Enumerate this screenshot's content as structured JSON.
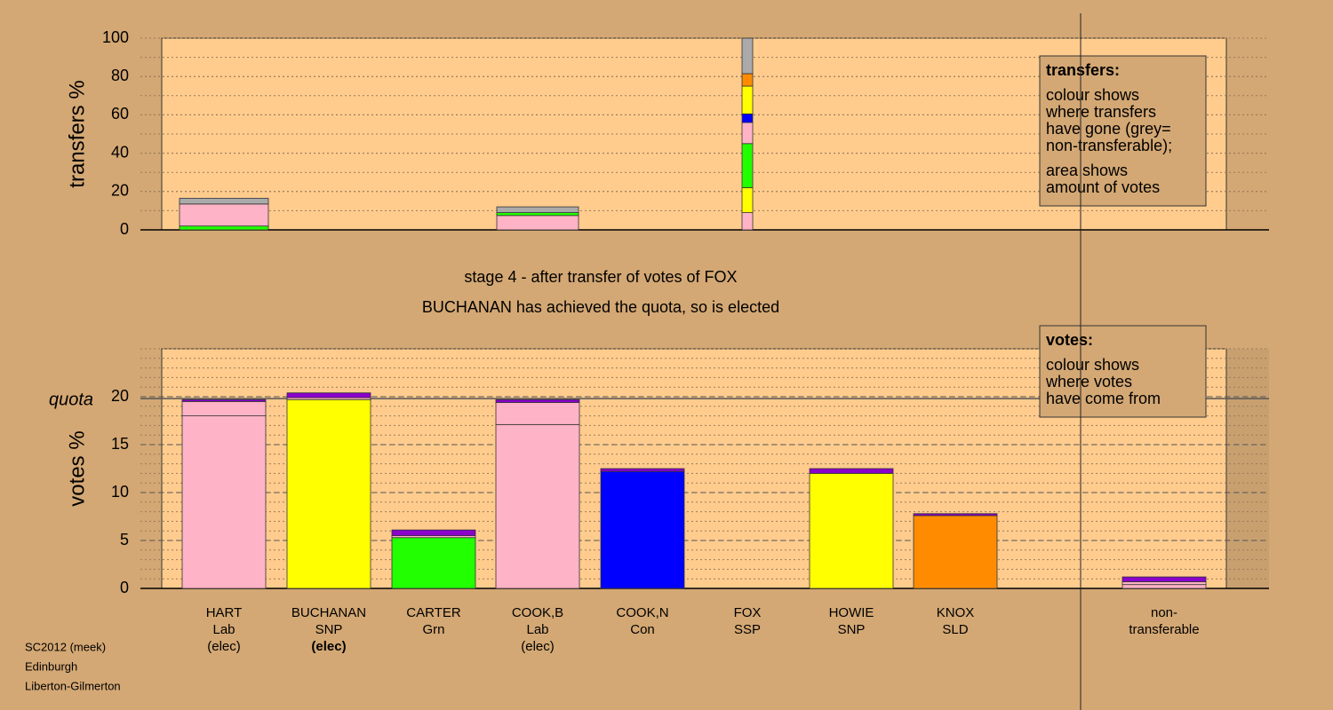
{
  "chart_data": [
    {
      "type": "stacked-bar",
      "ylabel": "transfers %",
      "ylim": [
        0,
        100
      ],
      "yticks": [
        0,
        20,
        40,
        60,
        80,
        100
      ],
      "grid": true,
      "bars": [
        {
          "segments": [
            {
              "value": 2,
              "color": "#22ff00"
            },
            {
              "value": 11.5,
              "color": "#ffb3c6"
            },
            {
              "value": 3,
              "color": "#aaaaaa"
            }
          ]
        },
        {
          "segments": []
        },
        {
          "segments": []
        },
        {
          "segments": [
            {
              "value": 7.5,
              "color": "#ffb3c6"
            },
            {
              "value": 1.5,
              "color": "#22ff00"
            },
            {
              "value": 3,
              "color": "#aaaaaa"
            }
          ]
        },
        {
          "segments": []
        },
        {
          "segments": [
            {
              "value": 9,
              "color": "#ffb3c6"
            },
            {
              "value": 13,
              "color": "#ffff00"
            },
            {
              "value": 23,
              "color": "#22ff00"
            },
            {
              "value": 11,
              "color": "#ffb3c6"
            },
            {
              "value": 4.5,
              "color": "#0000ff"
            },
            {
              "value": 14.5,
              "color": "#ffff00"
            },
            {
              "value": 6.5,
              "color": "#ff8c00"
            },
            {
              "value": 18.5,
              "color": "#aaaaaa"
            }
          ]
        },
        {
          "segments": []
        },
        {
          "segments": []
        },
        {
          "segments": []
        }
      ],
      "legend": {
        "title": "transfers:",
        "paragraphs": [
          [
            "colour shows",
            "where transfers",
            "have gone (grey=",
            "non-transferable);"
          ],
          [
            "area shows",
            "amount of votes"
          ]
        ]
      }
    },
    {
      "type": "stacked-bar",
      "ylabel": "votes %",
      "ylim": [
        0,
        25
      ],
      "yticks": [
        0,
        5,
        10,
        15,
        20
      ],
      "grid": true,
      "quota": {
        "label": "quota",
        "value": 19.8
      },
      "categories": [
        {
          "lines": [
            "HART",
            "Lab",
            "(elec)"
          ],
          "bold": [
            false,
            false,
            false
          ]
        },
        {
          "lines": [
            "BUCHANAN",
            "SNP",
            "(elec)"
          ],
          "bold": [
            false,
            false,
            true
          ]
        },
        {
          "lines": [
            "CARTER",
            "Grn"
          ],
          "bold": [
            false,
            false
          ]
        },
        {
          "lines": [
            "COOK,B",
            "Lab",
            "(elec)"
          ],
          "bold": [
            false,
            false,
            false
          ]
        },
        {
          "lines": [
            "COOK,N",
            "Con"
          ],
          "bold": [
            false,
            false
          ]
        },
        {
          "lines": [
            "FOX",
            "SSP"
          ],
          "bold": [
            false,
            false
          ]
        },
        {
          "lines": [
            "HOWIE",
            "SNP"
          ],
          "bold": [
            false,
            false
          ]
        },
        {
          "lines": [
            "KNOX",
            "SLD"
          ],
          "bold": [
            false,
            false
          ]
        },
        {
          "lines": [
            "non-",
            "transferable"
          ],
          "bold": [
            false,
            false
          ]
        }
      ],
      "bars": [
        {
          "segments": [
            {
              "value": 18.0,
              "color": "#ffb3c6"
            },
            {
              "value": 1.5,
              "color": "#ffb3c6"
            },
            {
              "value": 0.2,
              "color": "#8a00cc"
            }
          ]
        },
        {
          "segments": [
            {
              "value": 19.7,
              "color": "#ffff00"
            },
            {
              "value": 0.2,
              "color": "#ffb3c6"
            },
            {
              "value": 0.5,
              "color": "#8a00cc"
            }
          ]
        },
        {
          "segments": [
            {
              "value": 5.3,
              "color": "#22ff00"
            },
            {
              "value": 0.2,
              "color": "#ffb3c6"
            },
            {
              "value": 0.6,
              "color": "#8a00cc"
            }
          ]
        },
        {
          "segments": [
            {
              "value": 17.1,
              "color": "#ffb3c6"
            },
            {
              "value": 2.3,
              "color": "#ffb3c6"
            },
            {
              "value": 0.3,
              "color": "#8a00cc"
            }
          ]
        },
        {
          "segments": [
            {
              "value": 12.2,
              "color": "#0000ff"
            },
            {
              "value": 0.3,
              "color": "#8a00cc"
            }
          ]
        },
        {
          "segments": []
        },
        {
          "segments": [
            {
              "value": 12.0,
              "color": "#ffff00"
            },
            {
              "value": 0.5,
              "color": "#8a00cc"
            }
          ]
        },
        {
          "segments": [
            {
              "value": 7.6,
              "color": "#ff8c00"
            },
            {
              "value": 0.2,
              "color": "#8a00cc"
            }
          ]
        },
        {
          "segments": [
            {
              "value": 0.4,
              "color": "#ffb3c6"
            },
            {
              "value": 0.3,
              "color": "#ffb3c6"
            },
            {
              "value": 0.5,
              "color": "#8a00cc"
            }
          ]
        }
      ],
      "legend": {
        "title": "votes:",
        "paragraphs": [
          [
            "colour shows",
            "where votes",
            "have come from"
          ]
        ]
      }
    }
  ],
  "stage_text": [
    "stage 4 - after transfer of votes of FOX",
    "BUCHANAN has achieved the quota, so is elected"
  ],
  "footer": [
    "SC2012 (meek)",
    "Edinburgh",
    "Liberton-Gilmerton"
  ]
}
